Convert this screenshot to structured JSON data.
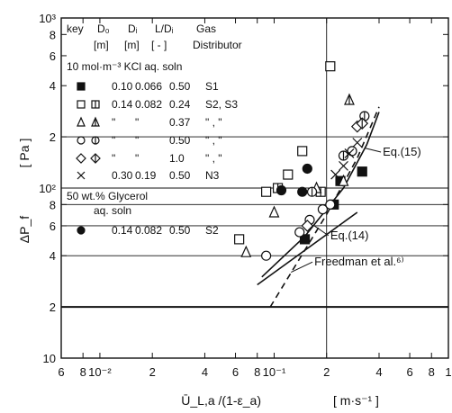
{
  "chart_data": {
    "type": "scatter",
    "title": "",
    "xlabel": "Ū_L,a /(1-ε_a)",
    "xunit": "[ m·s⁻¹ ]",
    "ylabel": "ΔP_f",
    "yunit": "[ Pa ]",
    "xscale": "log",
    "yscale": "log",
    "xlim": [
      0.006,
      1.0
    ],
    "ylim": [
      10,
      1000
    ],
    "grid": "partial",
    "x_tick_labels": [
      "6",
      "8",
      "10⁻²",
      "2",
      "4",
      "6",
      "8",
      "10⁻¹",
      "2",
      "4",
      "6",
      "8",
      "1"
    ],
    "y_tick_labels": [
      "10",
      "2",
      "4",
      "6",
      "8",
      "10²",
      "2",
      "4",
      "6",
      "8",
      "10³"
    ],
    "legend": {
      "header": [
        "key",
        "D₀",
        "Dᵢ",
        "L/Dᵢ",
        "Gas"
      ],
      "units": [
        "[m]",
        "[m]",
        "[ - ]",
        "Distributor"
      ],
      "group1": "10 mol·m⁻³ KCl aq. soln",
      "group2": "50 wt.% Glycerol",
      "group2b": "aq. soln",
      "rows": [
        {
          "markers": [
            "square-filled"
          ],
          "d0": "0.10",
          "di": "0.066",
          "ld": "0.50",
          "gas": "S1"
        },
        {
          "markers": [
            "square-open",
            "square-barred"
          ],
          "d0": "0.14",
          "di": "0.082",
          "ld": "0.24",
          "gas": "S2, S3"
        },
        {
          "markers": [
            "triangle-open",
            "triangle-barred"
          ],
          "d0": "\"",
          "di": "\"",
          "ld": "0.37",
          "gas": "\"  ,  \""
        },
        {
          "markers": [
            "circle-open",
            "circle-barred"
          ],
          "d0": "\"",
          "di": "\"",
          "ld": "0.50",
          "gas": "\"  ,  \""
        },
        {
          "markers": [
            "diamond-open",
            "diamond-barred"
          ],
          "d0": "\"",
          "di": "\"",
          "ld": "1.0",
          "gas": "\"  ,  \""
        },
        {
          "markers": [
            "cross"
          ],
          "d0": "0.30",
          "di": "0.19",
          "ld": "0.50",
          "gas": "N3"
        },
        {
          "markers": [
            "circle-filled"
          ],
          "d0": "0.14",
          "di": "0.082",
          "ld": "0.50",
          "gas": "S2"
        }
      ]
    },
    "series": [
      {
        "marker": "square-filled",
        "points": [
          [
            0.15,
            50
          ],
          [
            0.22,
            80
          ],
          [
            0.24,
            110
          ],
          [
            0.32,
            125
          ]
        ]
      },
      {
        "marker": "square-open",
        "points": [
          [
            0.063,
            50
          ],
          [
            0.09,
            95
          ],
          [
            0.12,
            120
          ],
          [
            0.145,
            165
          ],
          [
            0.21,
            520
          ]
        ]
      },
      {
        "marker": "square-barred",
        "points": [
          [
            0.105,
            100
          ],
          [
            0.185,
            95
          ]
        ]
      },
      {
        "marker": "triangle-open",
        "points": [
          [
            0.069,
            42
          ],
          [
            0.1,
            72
          ],
          [
            0.175,
            100
          ],
          [
            0.25,
            110
          ]
        ]
      },
      {
        "marker": "triangle-barred",
        "points": [
          [
            0.27,
            330
          ]
        ]
      },
      {
        "marker": "circle-open",
        "points": [
          [
            0.09,
            40
          ],
          [
            0.14,
            55
          ],
          [
            0.16,
            65
          ],
          [
            0.19,
            75
          ],
          [
            0.21,
            80
          ],
          [
            0.28,
            165
          ]
        ]
      },
      {
        "marker": "circle-barred",
        "points": [
          [
            0.165,
            95
          ],
          [
            0.25,
            155
          ],
          [
            0.33,
            265
          ]
        ]
      },
      {
        "marker": "diamond-open",
        "points": [
          [
            0.155,
            60
          ],
          [
            0.3,
            230
          ]
        ]
      },
      {
        "marker": "diamond-barred",
        "points": [
          [
            0.32,
            240
          ]
        ]
      },
      {
        "marker": "cross",
        "points": [
          [
            0.225,
            120
          ],
          [
            0.25,
            135
          ],
          [
            0.27,
            160
          ],
          [
            0.3,
            185
          ]
        ]
      },
      {
        "marker": "circle-filled",
        "points": [
          [
            0.11,
            97
          ],
          [
            0.145,
            95
          ],
          [
            0.155,
            130
          ]
        ]
      }
    ],
    "lines": [
      {
        "label": "Eq.(15)",
        "style": "solid",
        "points": [
          [
            0.085,
            30
          ],
          [
            0.15,
            52
          ],
          [
            0.25,
            100
          ],
          [
            0.34,
            180
          ],
          [
            0.4,
            280
          ]
        ]
      },
      {
        "label": "Eq.(14)",
        "style": "solid",
        "points": [
          [
            0.08,
            27
          ],
          [
            0.3,
            72
          ]
        ]
      },
      {
        "label": "Freedman et al.⁶⁾",
        "style": "dashed",
        "points": [
          [
            0.095,
            20
          ],
          [
            0.2,
            70
          ],
          [
            0.3,
            150
          ],
          [
            0.4,
            300
          ]
        ]
      }
    ],
    "annotations": [
      {
        "text": "Eq.(15)",
        "at": [
          0.42,
          155
        ],
        "arrow_to": [
          0.33,
          172
        ]
      },
      {
        "text": "Eq.(14)",
        "at": [
          0.21,
          50
        ],
        "arrow_to": [
          0.17,
          60
        ]
      },
      {
        "text": "Freedman et al.⁶⁾",
        "at": [
          0.17,
          35
        ],
        "arrow_to": [
          0.125,
          32
        ]
      }
    ]
  }
}
